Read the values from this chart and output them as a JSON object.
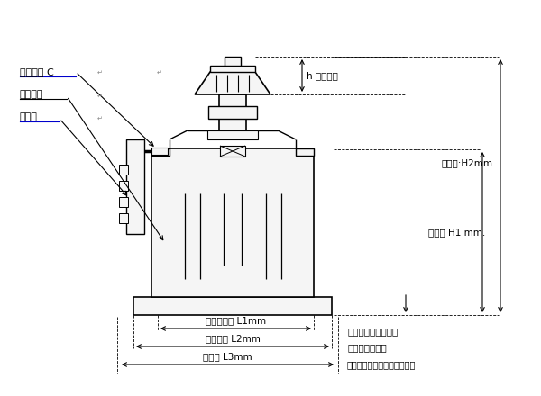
{
  "bg_color": "#ffffff",
  "line_color": "#000000",
  "labels": {
    "heng_ya": "恒压电刷 C",
    "dan_ceng": "单层线包",
    "jie_xian": "接线板",
    "h_shoulun": "h 手轮高度",
    "zong_h2": "总高度:H2mm.",
    "zong_h1": "总高度 H1 mm.",
    "an_zhuang": "安装孔距离 L1mm",
    "di_zuo": "底座宽度 L2mm",
    "zong_kuan": "总宽度 L3mm",
    "zhong_xin": "中心柱高度可以改动",
    "zheng_fang": "正方形安装底座",
    "bao_kuo": "（包括接线板和接线柱端子）"
  }
}
